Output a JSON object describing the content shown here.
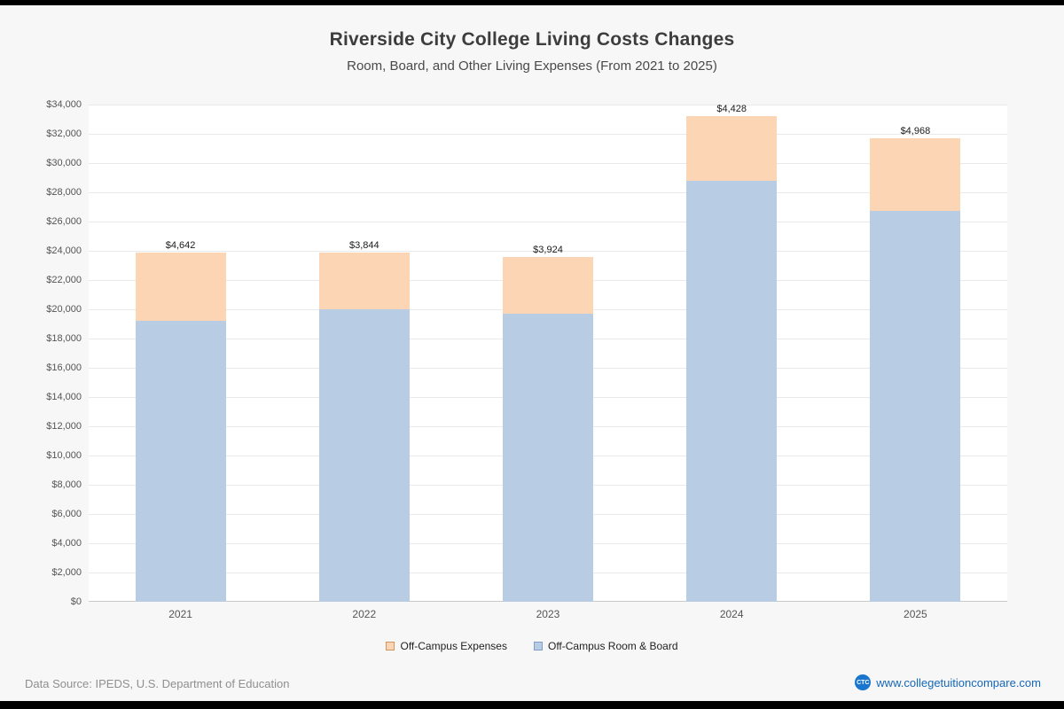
{
  "chart_data": {
    "type": "bar",
    "stacked": true,
    "title": "Riverside City College Living Costs Changes",
    "subtitle": "Room, Board, and Other Living Expenses (From 2021 to 2025)",
    "categories": [
      "2021",
      "2022",
      "2023",
      "2024",
      "2025"
    ],
    "series": [
      {
        "name": "Off-Campus Room & Board",
        "color": "#b8cce4",
        "values": [
          19216,
          20016,
          19674,
          28782,
          26740
        ]
      },
      {
        "name": "Off-Campus Expenses",
        "color": "#fcd5b5",
        "values": [
          4642,
          3844,
          3924,
          4428,
          4968
        ]
      }
    ],
    "data_labels": [
      [
        "$19,216",
        "$20,016",
        "$19,674",
        "$28,782",
        "$26,740"
      ],
      [
        "$4,642",
        "$3,844",
        "$3,924",
        "$4,428",
        "$4,968"
      ]
    ],
    "ylim": [
      0,
      34000
    ],
    "ytick_step": 2000,
    "ytick_format": "$#,###",
    "grid": true,
    "legend_position": "bottom"
  },
  "legend": {
    "items": [
      {
        "label": "Off-Campus Expenses",
        "color": "#fcd5b5",
        "border": "#d2955f"
      },
      {
        "label": "Off-Campus Room & Board",
        "color": "#b8cce4",
        "border": "#7f9fc6"
      }
    ]
  },
  "footer": {
    "source": "Data Source: IPEDS, U.S. Department of Education",
    "logo": "CTC",
    "site": "www.collegetuitioncompare.com"
  }
}
